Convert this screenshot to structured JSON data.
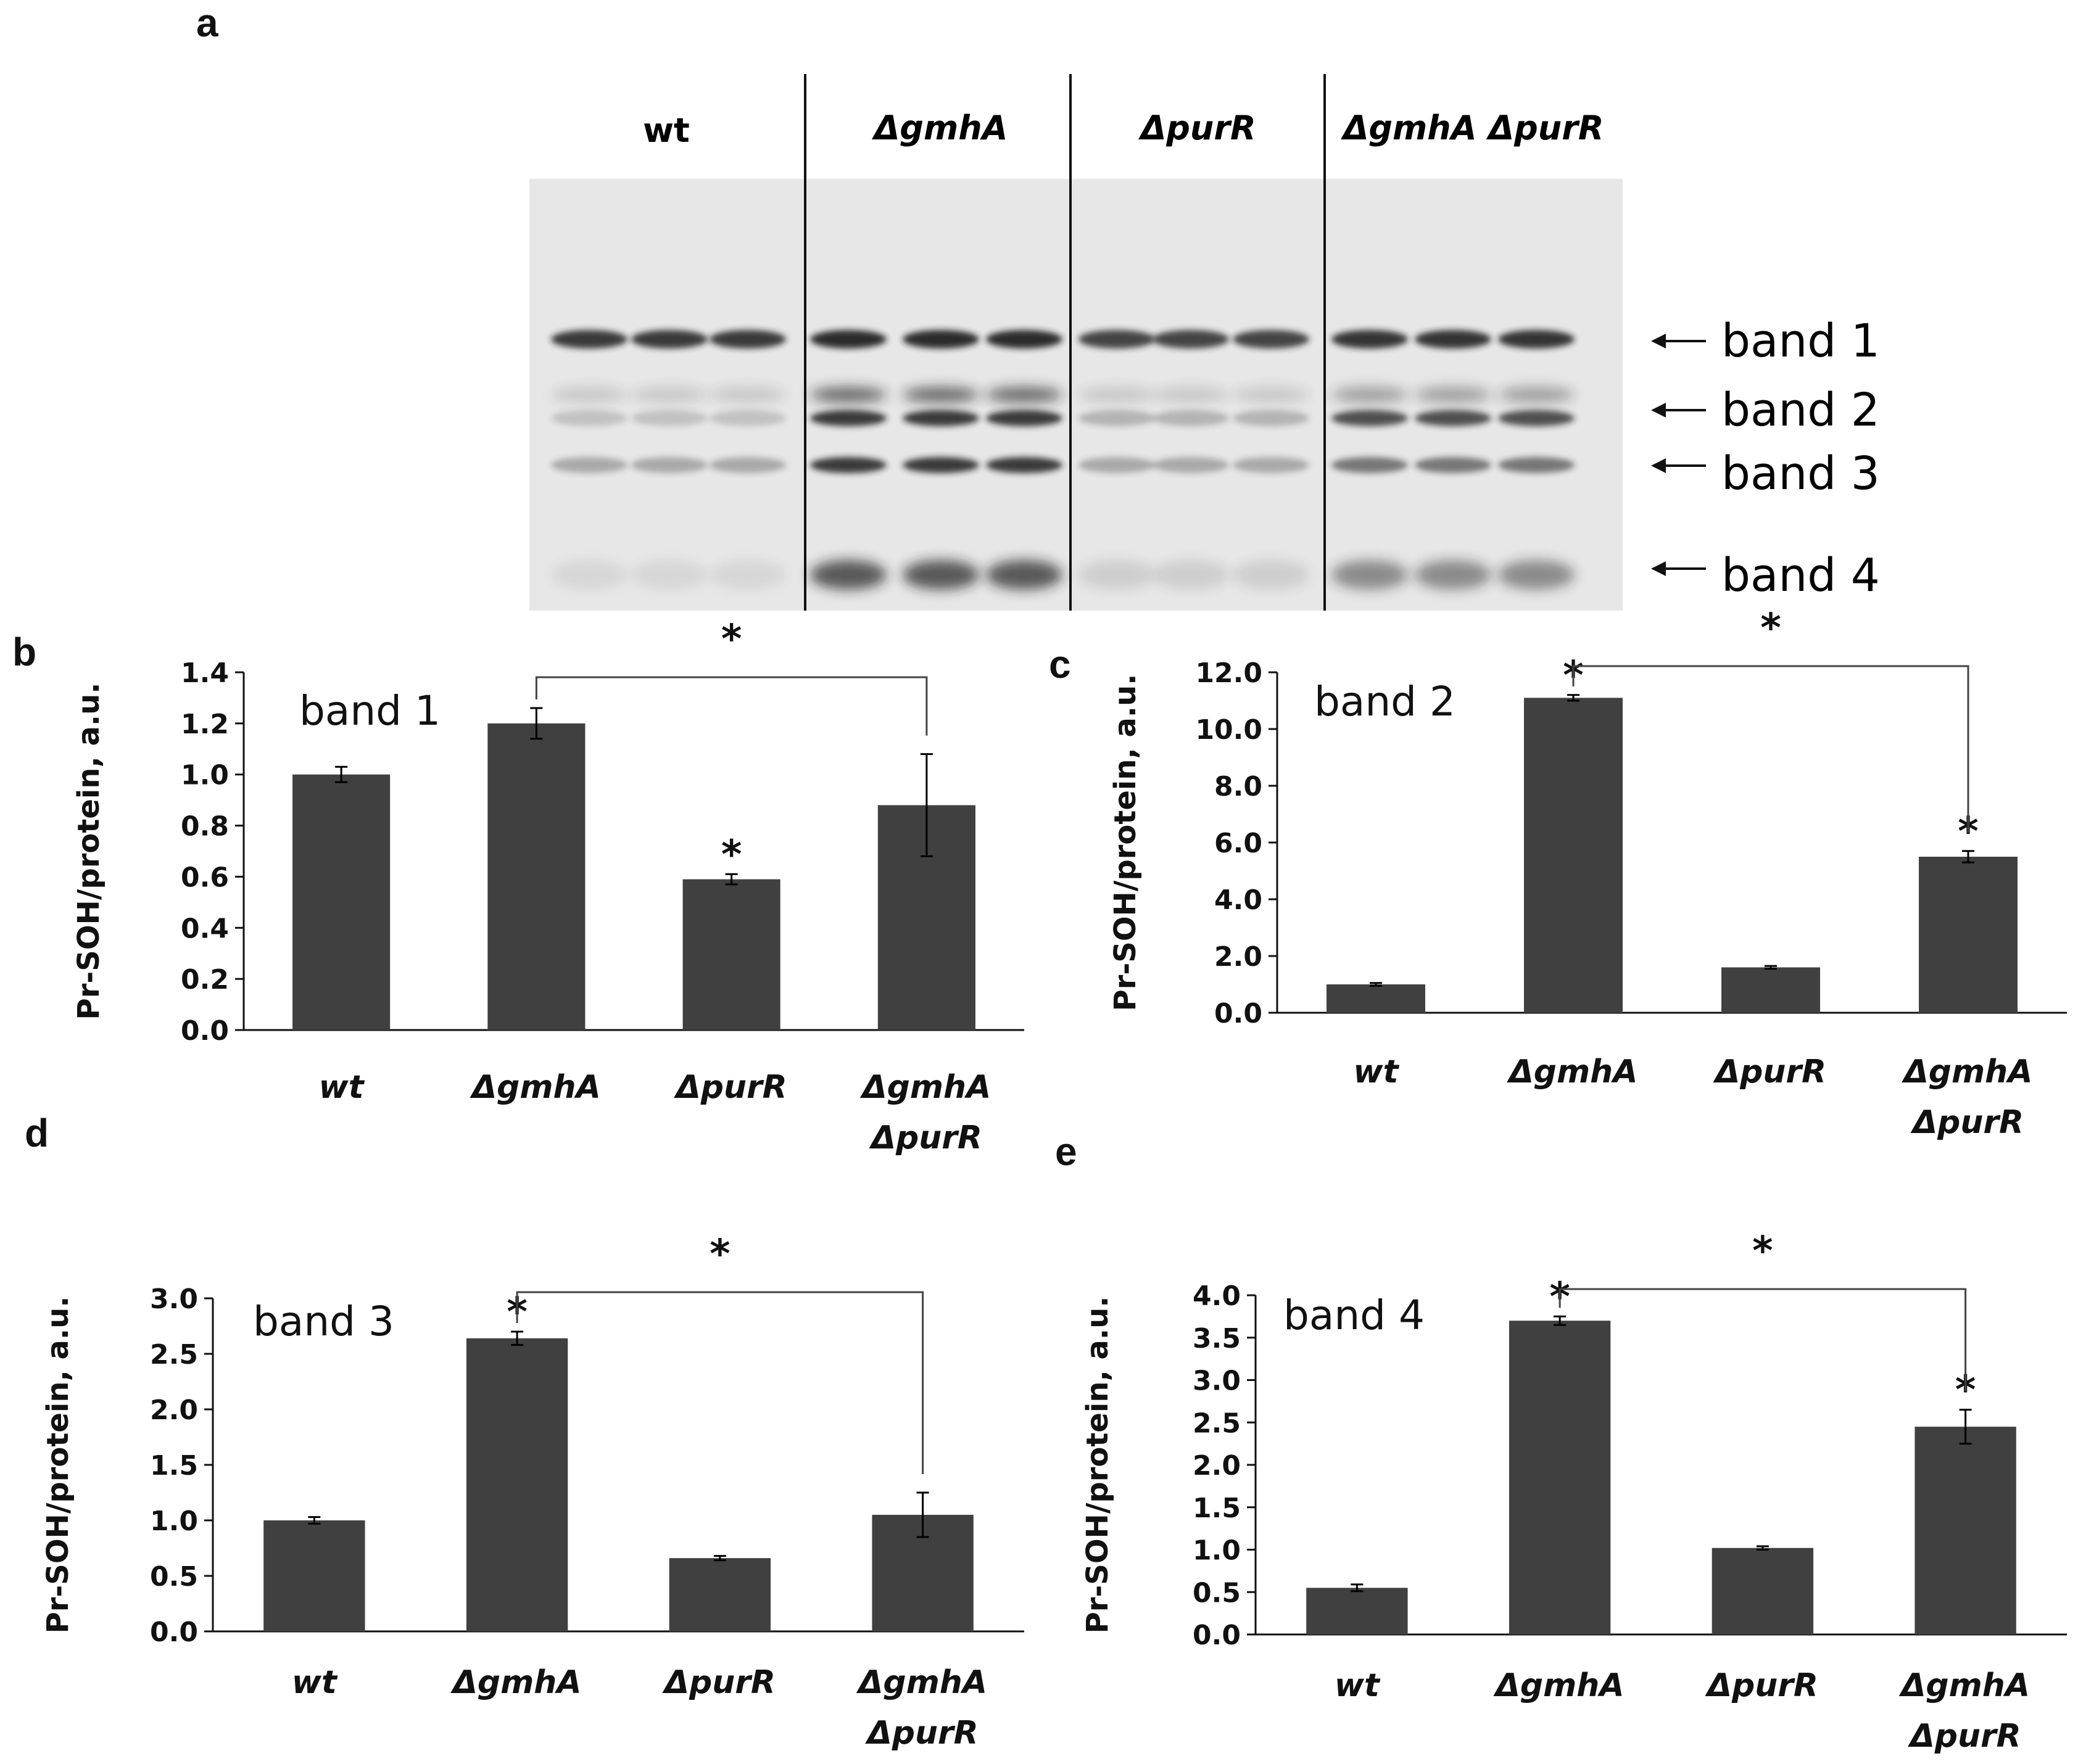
{
  "panel_labels": {
    "a": "a",
    "b": "b",
    "c": "c",
    "d": "d",
    "e": "e"
  },
  "blot": {
    "lane_groups": [
      "wt",
      "ΔgmhA",
      "ΔpurR",
      "ΔgmhA ΔpurR"
    ],
    "band_labels": [
      "band 1",
      "band 2",
      "band 3",
      "band 4"
    ],
    "lanes_per_group": 3
  },
  "colors": {
    "bar": "#404040",
    "axis": "#111111",
    "blot_bg": "#e6e6e6",
    "band": "#1e1e1e"
  },
  "chart_data": [
    {
      "panel": "b",
      "type": "bar",
      "title": "band 1",
      "ylabel": "Pr-SOH/protein, a.u.",
      "categories": [
        "wt",
        "ΔgmhA",
        "ΔpurR",
        "ΔgmhA ΔpurR"
      ],
      "values": [
        1.0,
        1.2,
        0.59,
        0.88
      ],
      "errors": [
        0.03,
        0.06,
        0.02,
        0.2
      ],
      "ylim": [
        0.0,
        1.4
      ],
      "yticks": [
        "0.0",
        "0.2",
        "0.4",
        "0.6",
        "0.8",
        "1.0",
        "1.2",
        "1.4"
      ],
      "bar_stars": [
        "",
        "",
        "*",
        ""
      ],
      "bracket": {
        "from": 1,
        "to": 3,
        "label": "*"
      }
    },
    {
      "panel": "c",
      "type": "bar",
      "title": "band 2",
      "ylabel": "Pr-SOH/protein, a.u.",
      "categories": [
        "wt",
        "ΔgmhA",
        "ΔpurR",
        "ΔgmhA ΔpurR"
      ],
      "values": [
        1.0,
        11.1,
        1.6,
        5.5
      ],
      "errors": [
        0.05,
        0.1,
        0.05,
        0.2
      ],
      "ylim": [
        0.0,
        12.0
      ],
      "yticks": [
        "0.0",
        "2.0",
        "4.0",
        "6.0",
        "8.0",
        "10.0",
        "12.0"
      ],
      "bar_stars": [
        "",
        "*",
        "",
        "*"
      ],
      "bracket": {
        "from": 1,
        "to": 3,
        "label": "*"
      }
    },
    {
      "panel": "d",
      "type": "bar",
      "title": "band 3",
      "ylabel": "Pr-SOH/protein, a.u.",
      "categories": [
        "wt",
        "ΔgmhA",
        "ΔpurR",
        "ΔgmhA ΔpurR"
      ],
      "values": [
        1.0,
        2.64,
        0.66,
        1.05
      ],
      "errors": [
        0.03,
        0.06,
        0.02,
        0.2
      ],
      "ylim": [
        0.0,
        3.0
      ],
      "yticks": [
        "0.0",
        "0.5",
        "1.0",
        "1.5",
        "2.0",
        "2.5",
        "3.0"
      ],
      "bar_stars": [
        "",
        "*",
        "",
        ""
      ],
      "bracket": {
        "from": 1,
        "to": 3,
        "label": "*"
      }
    },
    {
      "panel": "e",
      "type": "bar",
      "title": "band 4",
      "ylabel": "Pr-SOH/protein, a.u.",
      "categories": [
        "wt",
        "ΔgmhA",
        "ΔpurR",
        "ΔgmhA ΔpurR"
      ],
      "values": [
        0.55,
        3.7,
        1.02,
        2.45
      ],
      "errors": [
        0.04,
        0.05,
        0.02,
        0.2
      ],
      "ylim": [
        0.0,
        4.0
      ],
      "yticks": [
        "0.0",
        "0.5",
        "1.0",
        "1.5",
        "2.0",
        "2.5",
        "3.0",
        "3.5",
        "4.0"
      ],
      "bar_stars": [
        "",
        "*",
        "",
        "*"
      ],
      "bracket": {
        "from": 1,
        "to": 3,
        "label": "*"
      }
    }
  ]
}
